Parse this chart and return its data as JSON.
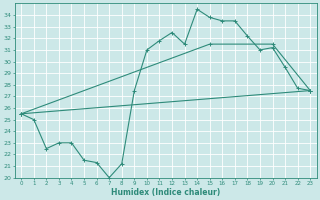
{
  "xlabel": "Humidex (Indice chaleur)",
  "xlim": [
    -0.5,
    23.5
  ],
  "ylim": [
    20,
    35
  ],
  "xticks": [
    0,
    1,
    2,
    3,
    4,
    5,
    6,
    7,
    8,
    9,
    10,
    11,
    12,
    13,
    14,
    15,
    16,
    17,
    18,
    19,
    20,
    21,
    22,
    23
  ],
  "yticks": [
    20,
    21,
    22,
    23,
    24,
    25,
    26,
    27,
    28,
    29,
    30,
    31,
    32,
    33,
    34
  ],
  "color": "#2e8b7a",
  "bg_color": "#cce8e8",
  "grid_color": "#ffffff",
  "line1_x": [
    0,
    1,
    2,
    3,
    4,
    5,
    6,
    7,
    8,
    9,
    10,
    11,
    12,
    13,
    14,
    15,
    16,
    17,
    18,
    19,
    20,
    21,
    22,
    23
  ],
  "line1_y": [
    25.5,
    25.0,
    22.5,
    23.0,
    23.0,
    21.5,
    21.3,
    20.0,
    21.2,
    27.5,
    31.0,
    31.8,
    32.5,
    31.5,
    34.5,
    33.8,
    33.5,
    33.5,
    32.2,
    31.0,
    31.2,
    29.5,
    27.7,
    27.5
  ],
  "line2_x": [
    0,
    23
  ],
  "line2_y": [
    25.5,
    27.5
  ],
  "line3_x": [
    0,
    15,
    20,
    23
  ],
  "line3_y": [
    25.5,
    31.5,
    31.5,
    27.5
  ]
}
